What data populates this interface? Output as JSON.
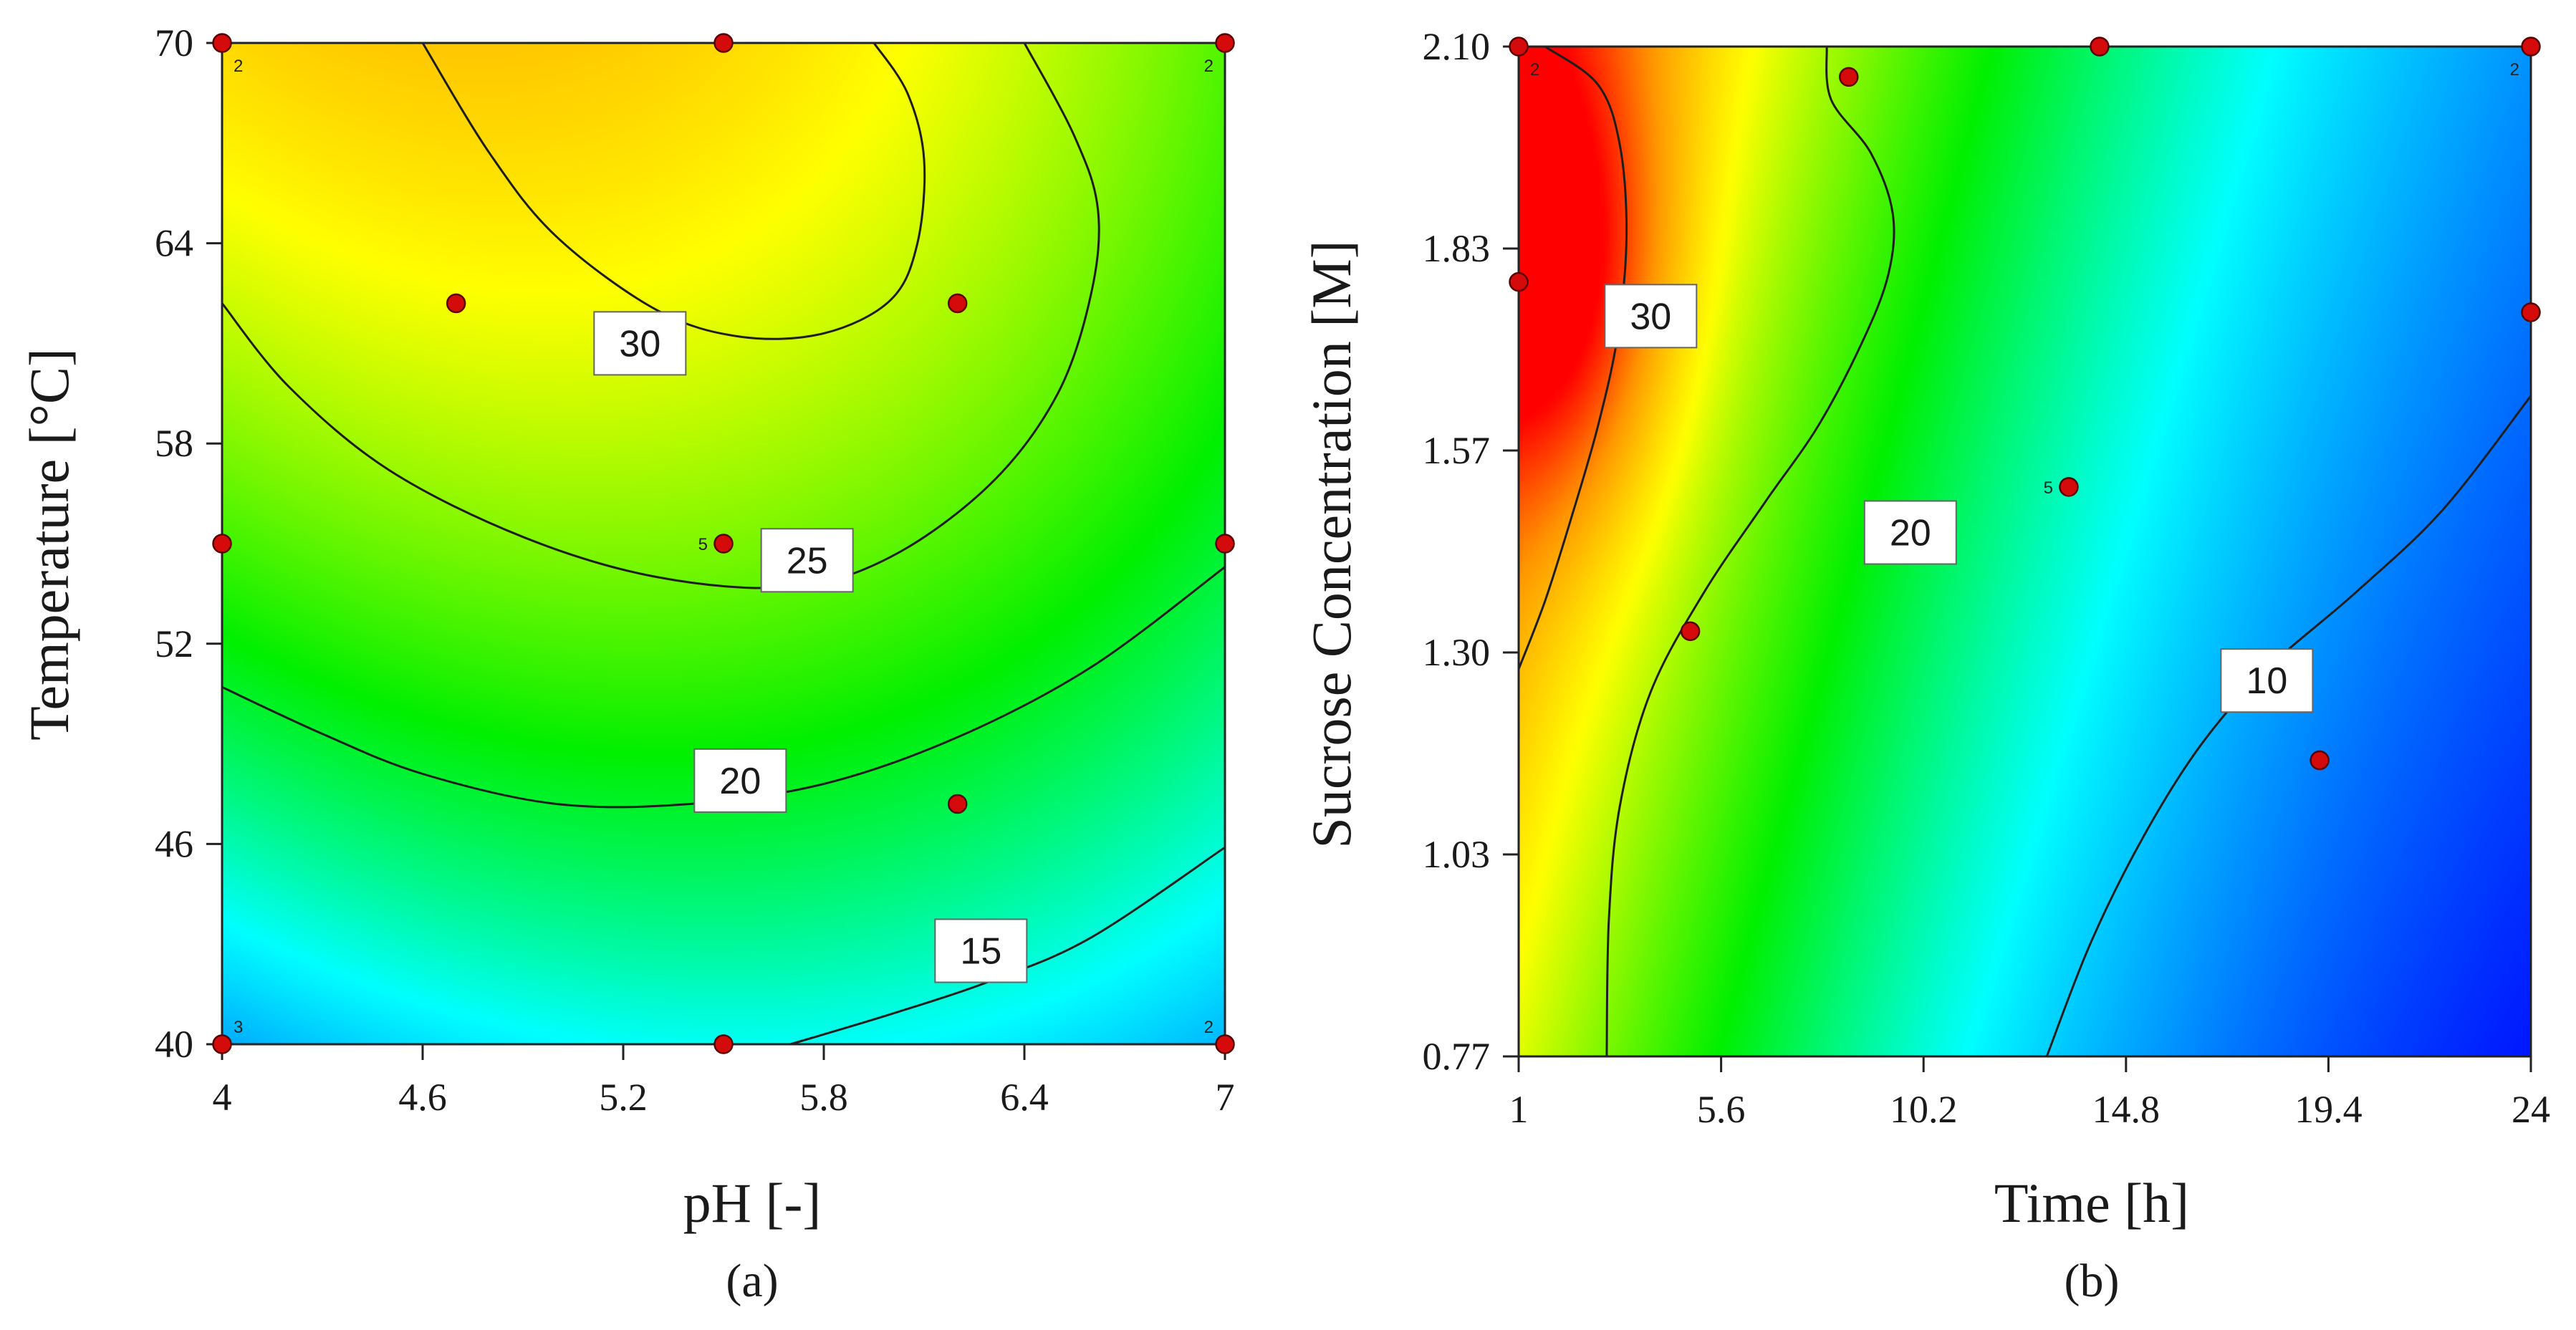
{
  "chart_data": [
    {
      "type": "contour",
      "panel_label": "(a)",
      "xlabel": "pH [-]",
      "ylabel": "Temperature [°C]",
      "xlim": [
        4,
        7
      ],
      "ylim": [
        40,
        70
      ],
      "x_ticks": [
        "4",
        "4.6",
        "5.2",
        "5.8",
        "6.4",
        "7"
      ],
      "y_ticks": [
        "40",
        "46",
        "52",
        "58",
        "64",
        "70"
      ],
      "response_range": [
        9,
        35
      ],
      "contour_levels": [
        {
          "level": 15,
          "label": "15",
          "line": [
            [
              5.7,
              40
            ],
            [
              6.0,
              40.9
            ],
            [
              6.3,
              41.9
            ],
            [
              6.6,
              43.2
            ],
            [
              7,
              45.9
            ]
          ],
          "label_at": [
            6.27,
            42.8
          ]
        },
        {
          "level": 20,
          "label": "20",
          "line": [
            [
              4,
              50.7
            ],
            [
              4.3,
              49.3
            ],
            [
              4.6,
              48.1
            ],
            [
              5.0,
              47.2
            ],
            [
              5.4,
              47.2
            ],
            [
              5.8,
              47.8
            ],
            [
              6.2,
              49.2
            ],
            [
              6.6,
              51.3
            ],
            [
              7,
              54.3
            ]
          ],
          "label_at": [
            5.55,
            47.9
          ]
        },
        {
          "level": 25,
          "label": "25",
          "line": [
            [
              4,
              62.2
            ],
            [
              4.2,
              59.7
            ],
            [
              4.5,
              57.2
            ],
            [
              4.9,
              55.2
            ],
            [
              5.3,
              54.0
            ],
            [
              5.7,
              53.7
            ],
            [
              6.0,
              54.6
            ],
            [
              6.3,
              56.8
            ],
            [
              6.5,
              59.5
            ],
            [
              6.6,
              62.5
            ],
            [
              6.62,
              65
            ],
            [
              6.55,
              67.2
            ],
            [
              6.4,
              70
            ]
          ],
          "label_at": [
            5.75,
            54.5
          ]
        },
        {
          "level": 30,
          "label": "30",
          "line": [
            [
              4.6,
              70
            ],
            [
              4.8,
              66.7
            ],
            [
              5.0,
              64.2
            ],
            [
              5.3,
              62.0
            ],
            [
              5.55,
              61.2
            ],
            [
              5.8,
              61.3
            ],
            [
              6.0,
              62.3
            ],
            [
              6.08,
              64.0
            ],
            [
              6.1,
              66.5
            ],
            [
              6.05,
              68.5
            ],
            [
              5.95,
              70
            ]
          ],
          "label_at": [
            5.25,
            61.0
          ]
        }
      ],
      "design_points": [
        {
          "x": 4,
          "y": 70,
          "replicates": "2"
        },
        {
          "x": 5.5,
          "y": 70,
          "replicates": ""
        },
        {
          "x": 7,
          "y": 70,
          "replicates": "2"
        },
        {
          "x": 4.7,
          "y": 62.2,
          "replicates": ""
        },
        {
          "x": 6.2,
          "y": 62.2,
          "replicates": ""
        },
        {
          "x": 4,
          "y": 55,
          "replicates": ""
        },
        {
          "x": 5.5,
          "y": 55,
          "replicates": "5"
        },
        {
          "x": 7,
          "y": 55,
          "replicates": ""
        },
        {
          "x": 6.2,
          "y": 47.2,
          "replicates": ""
        },
        {
          "x": 4,
          "y": 40,
          "replicates": "3"
        },
        {
          "x": 5.5,
          "y": 40,
          "replicates": ""
        },
        {
          "x": 7,
          "y": 40,
          "replicates": "2"
        }
      ]
    },
    {
      "type": "contour",
      "panel_label": "(b)",
      "xlabel": "Time [h]",
      "ylabel": "Sucrose Concentration [M]",
      "xlim": [
        1,
        24
      ],
      "ylim": [
        0.77,
        2.1
      ],
      "x_ticks": [
        "1",
        "5.6",
        "10.2",
        "14.8",
        "19.4",
        "24"
      ],
      "y_ticks": [
        "0.77",
        "1.03",
        "1.30",
        "1.57",
        "1.83",
        "2.10"
      ],
      "response_range": [
        6,
        36
      ],
      "contour_levels": [
        {
          "level": 10,
          "label": "10",
          "line": [
            [
              13,
              0.77
            ],
            [
              14.0,
              0.92
            ],
            [
              15.2,
              1.06
            ],
            [
              16.5,
              1.18
            ],
            [
              18,
              1.28
            ],
            [
              20,
              1.38
            ],
            [
              22,
              1.49
            ],
            [
              24,
              1.64
            ]
          ],
          "label_at": [
            18.0,
            1.265
          ]
        },
        {
          "level": 20,
          "label": "20",
          "line": [
            [
              3.0,
              0.77
            ],
            [
              3.05,
              0.95
            ],
            [
              3.3,
              1.1
            ],
            [
              4.0,
              1.25
            ],
            [
              5.2,
              1.38
            ],
            [
              6.6,
              1.5
            ],
            [
              7.8,
              1.6
            ],
            [
              8.8,
              1.71
            ],
            [
              9.4,
              1.8
            ],
            [
              9.5,
              1.88
            ],
            [
              9.0,
              1.96
            ],
            [
              8.1,
              2.03
            ],
            [
              8.0,
              2.1
            ]
          ],
          "label_at": [
            9.9,
            1.46
          ]
        },
        {
          "level": 30,
          "label": "30",
          "line": [
            [
              1,
              1.28
            ],
            [
              1.6,
              1.37
            ],
            [
              2.2,
              1.48
            ],
            [
              2.8,
              1.6
            ],
            [
              3.25,
              1.72
            ],
            [
              3.45,
              1.85
            ],
            [
              3.3,
              1.97
            ],
            [
              2.8,
              2.05
            ],
            [
              1.6,
              2.1
            ]
          ],
          "label_at": [
            4.0,
            1.745
          ]
        }
      ],
      "design_points": [
        {
          "x": 1,
          "y": 2.1,
          "replicates": "2"
        },
        {
          "x": 8.5,
          "y": 2.06,
          "replicates": ""
        },
        {
          "x": 14.2,
          "y": 2.1,
          "replicates": ""
        },
        {
          "x": 24,
          "y": 2.1,
          "replicates": "2"
        },
        {
          "x": 1,
          "y": 1.79,
          "replicates": ""
        },
        {
          "x": 24,
          "y": 1.75,
          "replicates": ""
        },
        {
          "x": 13.5,
          "y": 1.52,
          "replicates": "5"
        },
        {
          "x": 4.9,
          "y": 1.33,
          "replicates": ""
        },
        {
          "x": 19.2,
          "y": 1.16,
          "replicates": ""
        }
      ]
    }
  ]
}
